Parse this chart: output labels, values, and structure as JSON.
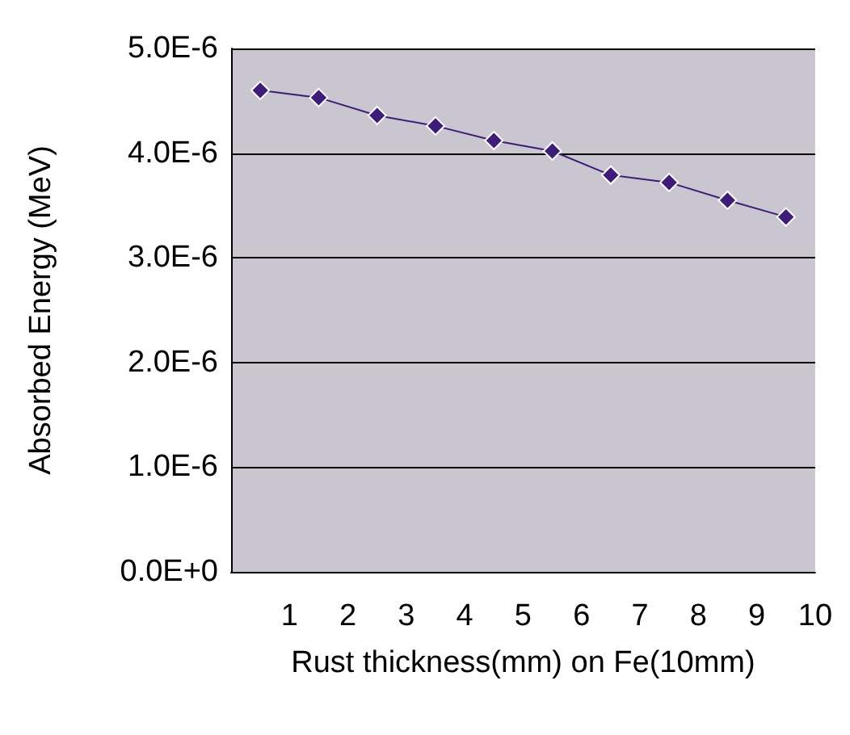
{
  "chart_data": {
    "type": "line",
    "xlabel": "Rust thickness(mm) on Fe(10mm)",
    "ylabel": "Absorbed Energy (MeV)",
    "x": [
      0.5,
      1.5,
      2.5,
      3.5,
      4.5,
      5.5,
      6.5,
      7.5,
      8.5,
      9.5
    ],
    "series": [
      {
        "color": "#3d1c7a",
        "values": [
          4.6e-06,
          4.53e-06,
          4.36e-06,
          4.26e-06,
          4.12e-06,
          4.02e-06,
          3.79e-06,
          3.72e-06,
          3.55e-06,
          3.39e-06
        ]
      }
    ],
    "xlim": [
      0,
      10
    ],
    "xticks": [
      1,
      2,
      3,
      4,
      5,
      6,
      7,
      8,
      9,
      10
    ],
    "ylim": [
      0,
      5e-06
    ],
    "yticks": [
      {
        "value": 0,
        "label": "0.0E+0"
      },
      {
        "value": 1e-06,
        "label": "1.0E-6"
      },
      {
        "value": 2e-06,
        "label": "2.0E-6"
      },
      {
        "value": 3e-06,
        "label": "3.0E-6"
      },
      {
        "value": 4e-06,
        "label": "4.0E-6"
      },
      {
        "value": 5e-06,
        "label": "5.0E-6"
      }
    ],
    "grid": "y",
    "marker": "diamond",
    "line_style": "solid"
  }
}
